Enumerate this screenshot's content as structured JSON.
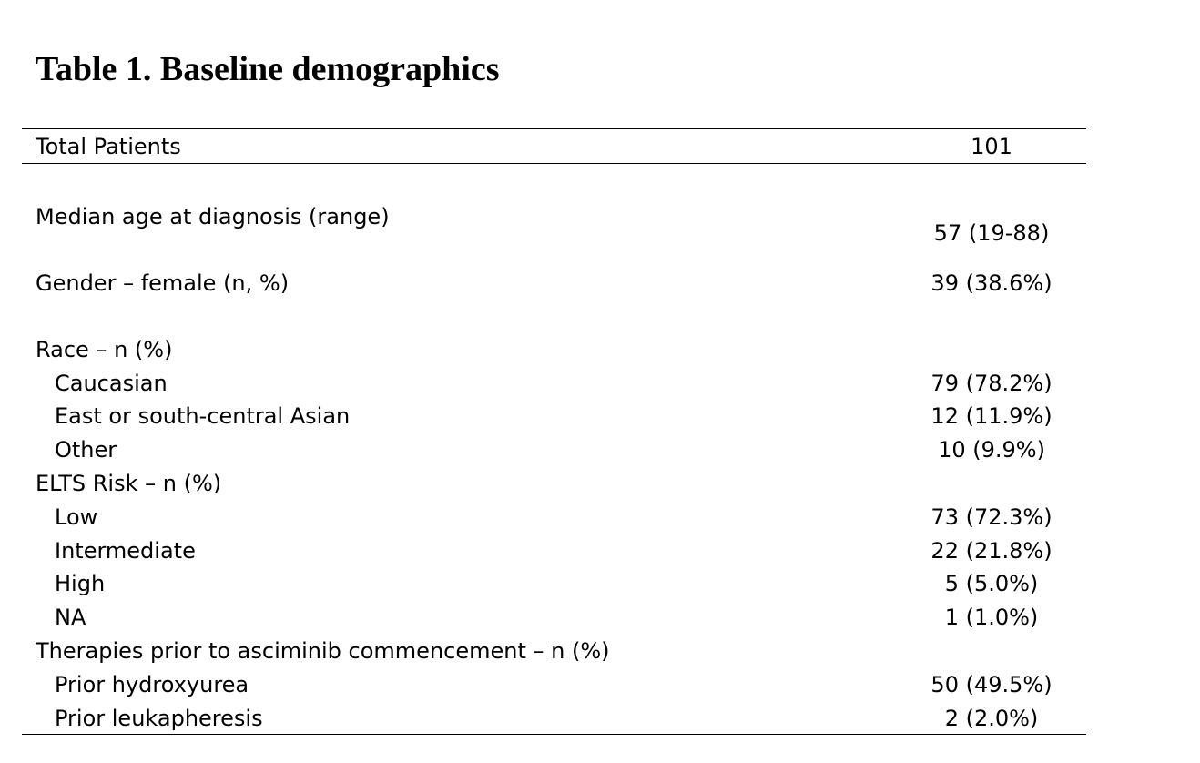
{
  "title": "Table 1.  Baseline demographics",
  "header": {
    "label": "Total Patients",
    "value": "101"
  },
  "rows": {
    "median_age": {
      "label": "Median age at diagnosis (range)",
      "value": "57 (19-88)"
    },
    "gender": {
      "label": "Gender – female (n, %)",
      "value": "39 (38.6%)"
    },
    "race": {
      "label": "Race – n (%)",
      "items": [
        {
          "label": "Caucasian",
          "value": "79 (78.2%)"
        },
        {
          "label": "East or south-central Asian",
          "value": "12 (11.9%)"
        },
        {
          "label": "Other",
          "value": "10 (9.9%)"
        }
      ]
    },
    "elts": {
      "label": "ELTS Risk – n (%)",
      "items": [
        {
          "label": "Low",
          "value": "73 (72.3%)"
        },
        {
          "label": "Intermediate",
          "value": "22 (21.8%)"
        },
        {
          "label": "High",
          "value": "5 (5.0%)"
        },
        {
          "label": "NA",
          "value": "1 (1.0%)"
        }
      ]
    },
    "therapies": {
      "label": "Therapies prior to asciminib commencement – n (%)",
      "items": [
        {
          "label": "Prior hydroxyurea",
          "value": "50 (49.5%)"
        },
        {
          "label": "Prior leukapheresis",
          "value": "2 (2.0%)"
        }
      ]
    }
  }
}
